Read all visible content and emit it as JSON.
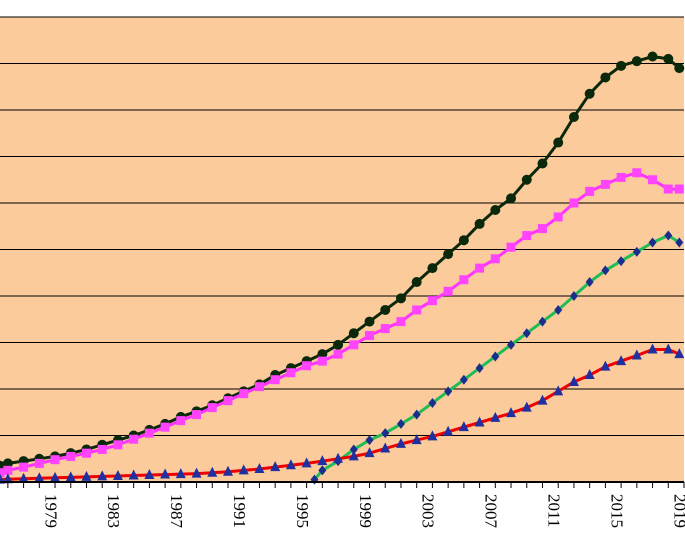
{
  "chart_data": {
    "type": "line",
    "title": "",
    "xlabel": "",
    "ylabel": "",
    "xlim": [
      1976.5,
      2020
    ],
    "ylim": [
      0,
      10
    ],
    "grid": true,
    "legend": "none",
    "colors": {
      "plot_background": "#FBCB9C",
      "grid": "#000000"
    },
    "x_tick_labels": [
      "1979",
      "1983",
      "1987",
      "1991",
      "1995",
      "1999",
      "2003",
      "2007",
      "2011",
      "2015",
      "2019"
    ],
    "series": [
      {
        "line_color": "#0A280A",
        "marker_color": "#0A280A",
        "marker": "circle",
        "x": [
          1976.5,
          1977,
          1978,
          1979,
          1980,
          1981,
          1982,
          1983,
          1984,
          1985,
          1986,
          1987,
          1988,
          1989,
          1990,
          1991,
          1992,
          1993,
          1994,
          1995,
          1996,
          1997,
          1998,
          1999,
          2000,
          2001,
          2002,
          2003,
          2004,
          2005,
          2006,
          2007,
          2008,
          2009,
          2010,
          2011,
          2012,
          2013,
          2014,
          2015,
          2016,
          2017,
          2018,
          2019,
          2019.7
        ],
        "y": [
          0.35,
          0.4,
          0.45,
          0.5,
          0.55,
          0.62,
          0.7,
          0.8,
          0.9,
          1.0,
          1.12,
          1.25,
          1.4,
          1.52,
          1.65,
          1.8,
          1.95,
          2.1,
          2.3,
          2.45,
          2.6,
          2.75,
          2.95,
          3.2,
          3.45,
          3.7,
          3.95,
          4.3,
          4.6,
          4.9,
          5.2,
          5.55,
          5.85,
          6.1,
          6.5,
          6.85,
          7.3,
          7.85,
          8.35,
          8.7,
          8.95,
          9.05,
          9.15,
          9.1,
          8.9
        ]
      },
      {
        "line_color": "#FF33FF",
        "marker_color": "#FF44FF",
        "marker": "square",
        "x": [
          1976.5,
          1977,
          1978,
          1979,
          1980,
          1981,
          1982,
          1983,
          1984,
          1985,
          1986,
          1987,
          1988,
          1989,
          1990,
          1991,
          1992,
          1993,
          1994,
          1995,
          1996,
          1997,
          1998,
          1999,
          2000,
          2001,
          2002,
          2003,
          2004,
          2005,
          2006,
          2007,
          2008,
          2009,
          2010,
          2011,
          2012,
          2013,
          2014,
          2015,
          2016,
          2017,
          2018,
          2019,
          2019.7
        ],
        "y": [
          0.2,
          0.25,
          0.32,
          0.4,
          0.48,
          0.55,
          0.62,
          0.7,
          0.8,
          0.92,
          1.05,
          1.18,
          1.32,
          1.45,
          1.6,
          1.75,
          1.9,
          2.05,
          2.2,
          2.35,
          2.5,
          2.6,
          2.75,
          2.95,
          3.15,
          3.3,
          3.45,
          3.7,
          3.9,
          4.1,
          4.35,
          4.6,
          4.8,
          5.05,
          5.3,
          5.45,
          5.7,
          6.0,
          6.25,
          6.4,
          6.55,
          6.65,
          6.5,
          6.3,
          6.3
        ]
      },
      {
        "line_color": "#22BB55",
        "marker_color": "#1A2E8C",
        "marker": "diamond",
        "x": [
          1996.5,
          1997,
          1998,
          1999,
          2000,
          2001,
          2002,
          2003,
          2004,
          2005,
          2006,
          2007,
          2008,
          2009,
          2010,
          2011,
          2012,
          2013,
          2014,
          2015,
          2016,
          2017,
          2018,
          2019,
          2019.7
        ],
        "y": [
          0.05,
          0.25,
          0.45,
          0.7,
          0.9,
          1.05,
          1.25,
          1.45,
          1.7,
          1.95,
          2.2,
          2.45,
          2.7,
          2.95,
          3.2,
          3.45,
          3.7,
          4.0,
          4.3,
          4.55,
          4.75,
          4.95,
          5.15,
          5.3,
          5.15
        ]
      },
      {
        "line_color": "#EE0000",
        "marker_color": "#2030A0",
        "marker": "triangle",
        "x": [
          1976.5,
          1977,
          1978,
          1979,
          1980,
          1981,
          1982,
          1983,
          1984,
          1985,
          1986,
          1987,
          1988,
          1989,
          1990,
          1991,
          1992,
          1993,
          1994,
          1995,
          1996,
          1997,
          1998,
          1999,
          2000,
          2001,
          2002,
          2003,
          2004,
          2005,
          2006,
          2007,
          2008,
          2009,
          2010,
          2011,
          2012,
          2013,
          2014,
          2015,
          2016,
          2017,
          2018,
          2019,
          2019.7
        ],
        "y": [
          0.05,
          0.06,
          0.07,
          0.08,
          0.09,
          0.1,
          0.11,
          0.12,
          0.13,
          0.14,
          0.15,
          0.16,
          0.17,
          0.18,
          0.2,
          0.22,
          0.25,
          0.28,
          0.32,
          0.36,
          0.4,
          0.45,
          0.5,
          0.55,
          0.62,
          0.72,
          0.82,
          0.9,
          0.98,
          1.08,
          1.18,
          1.28,
          1.38,
          1.48,
          1.6,
          1.75,
          1.95,
          2.15,
          2.3,
          2.48,
          2.6,
          2.72,
          2.85,
          2.85,
          2.75
        ]
      }
    ]
  }
}
